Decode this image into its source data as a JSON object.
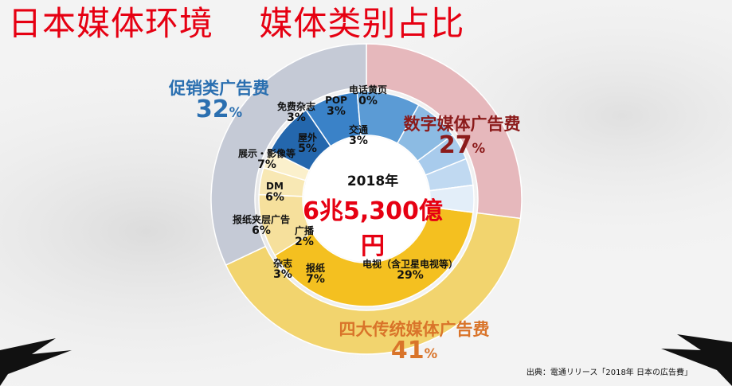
{
  "title": "日本媒体环境    媒体类别占比",
  "source": "出典：電通リリース「2018年 日本の広告費」",
  "center": {
    "year": "2018年",
    "total": "6兆5,300億円"
  },
  "chart_data": {
    "type": "pie",
    "title": "日本媒体环境    媒体类别占比",
    "total_label": "6兆5,300億円",
    "year_label": "2018年",
    "outer_ring": [
      {
        "name": "数字媒体广告费",
        "value": 27,
        "label": "27%",
        "color": "#e6b8bc"
      },
      {
        "name": "四大传统媒体广告费",
        "value": 41,
        "label": "41%",
        "color": "#f2d46e"
      },
      {
        "name": "促销类广告费",
        "value": 32,
        "label": "32%",
        "color": "#c5cad6"
      }
    ],
    "inner_ring": [
      {
        "name": "电视（含卫星电视等）",
        "value": 29,
        "label": "29%",
        "color": "#f4c020"
      },
      {
        "name": "报纸",
        "value": 7,
        "label": "7%",
        "color": "#f6e09c"
      },
      {
        "name": "杂志",
        "value": 3,
        "label": "3%",
        "color": "#f8e8b4"
      },
      {
        "name": "广播",
        "value": 2,
        "label": "2%",
        "color": "#fbf0cc"
      },
      {
        "name": "报纸夹层广告",
        "value": 6,
        "label": "6%",
        "color": "#2467ad"
      },
      {
        "name": "DM",
        "value": 6,
        "label": "6%",
        "color": "#3a82c8"
      },
      {
        "name": "展示・影像等",
        "value": 7,
        "label": "7%",
        "color": "#5b9bd5"
      },
      {
        "name": "屋外",
        "value": 5,
        "label": "5%",
        "color": "#8cbbe3"
      },
      {
        "name": "免费杂志",
        "value": 3,
        "label": "3%",
        "color": "#a8cbec"
      },
      {
        "name": "POP",
        "value": 3,
        "label": "3%",
        "color": "#c0d9f1"
      },
      {
        "name": "电话黄页",
        "value": 0,
        "label": "0%",
        "color": "#d4e5f6"
      },
      {
        "name": "交通",
        "value": 3,
        "label": "3%",
        "color": "#e3eef9"
      }
    ],
    "legend": "none",
    "grid": false
  }
}
